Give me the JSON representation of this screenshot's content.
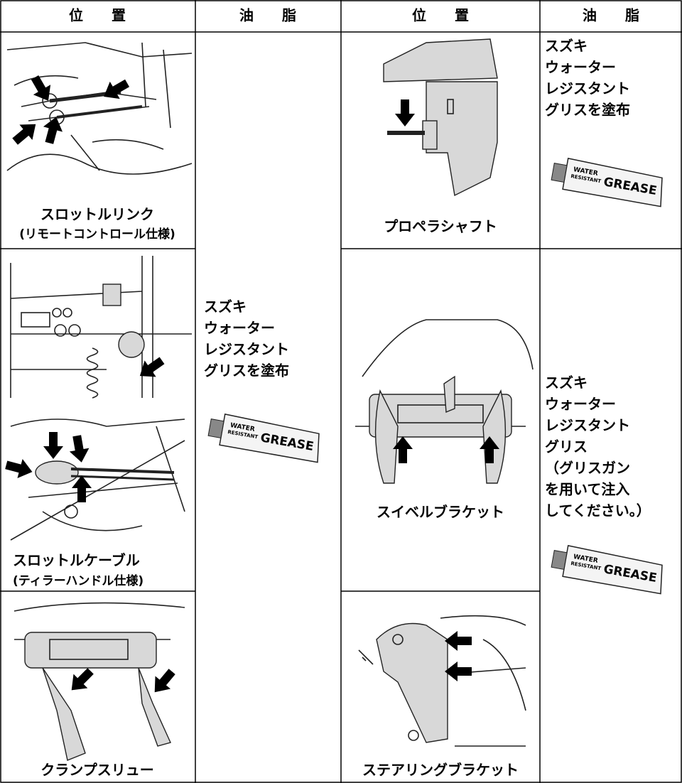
{
  "table": {
    "header": [
      "位　　置",
      "油　　脂",
      "位　　置",
      "油　　脂"
    ],
    "left_locations": [
      [
        "スロットルリンク",
        "(リモートコントロール仕様)"
      ],
      [
        "スロットルケーブル",
        "(ティラーハンドル仕様)"
      ],
      [
        "クランプスリュー"
      ]
    ],
    "left_grease": [
      "スズキ",
      "ウォーター",
      "レジスタント",
      "グリスを塗布"
    ],
    "right_locations": [
      [
        "プロペラシャフト"
      ],
      [
        "スイベルブラケット"
      ],
      [
        "ステアリングブラケット"
      ]
    ],
    "right_grease_top": [
      "スズキ",
      "ウォーター",
      "レジスタント",
      "グリスを塗布"
    ],
    "right_grease_bottom": [
      "スズキ",
      "ウォーター",
      "レジスタント",
      "グリス",
      "（グリスガン",
      "を用いて注入",
      "してください。）"
    ],
    "grease_tube": [
      "WATER",
      "RESISTANT",
      "GREASE"
    ]
  }
}
